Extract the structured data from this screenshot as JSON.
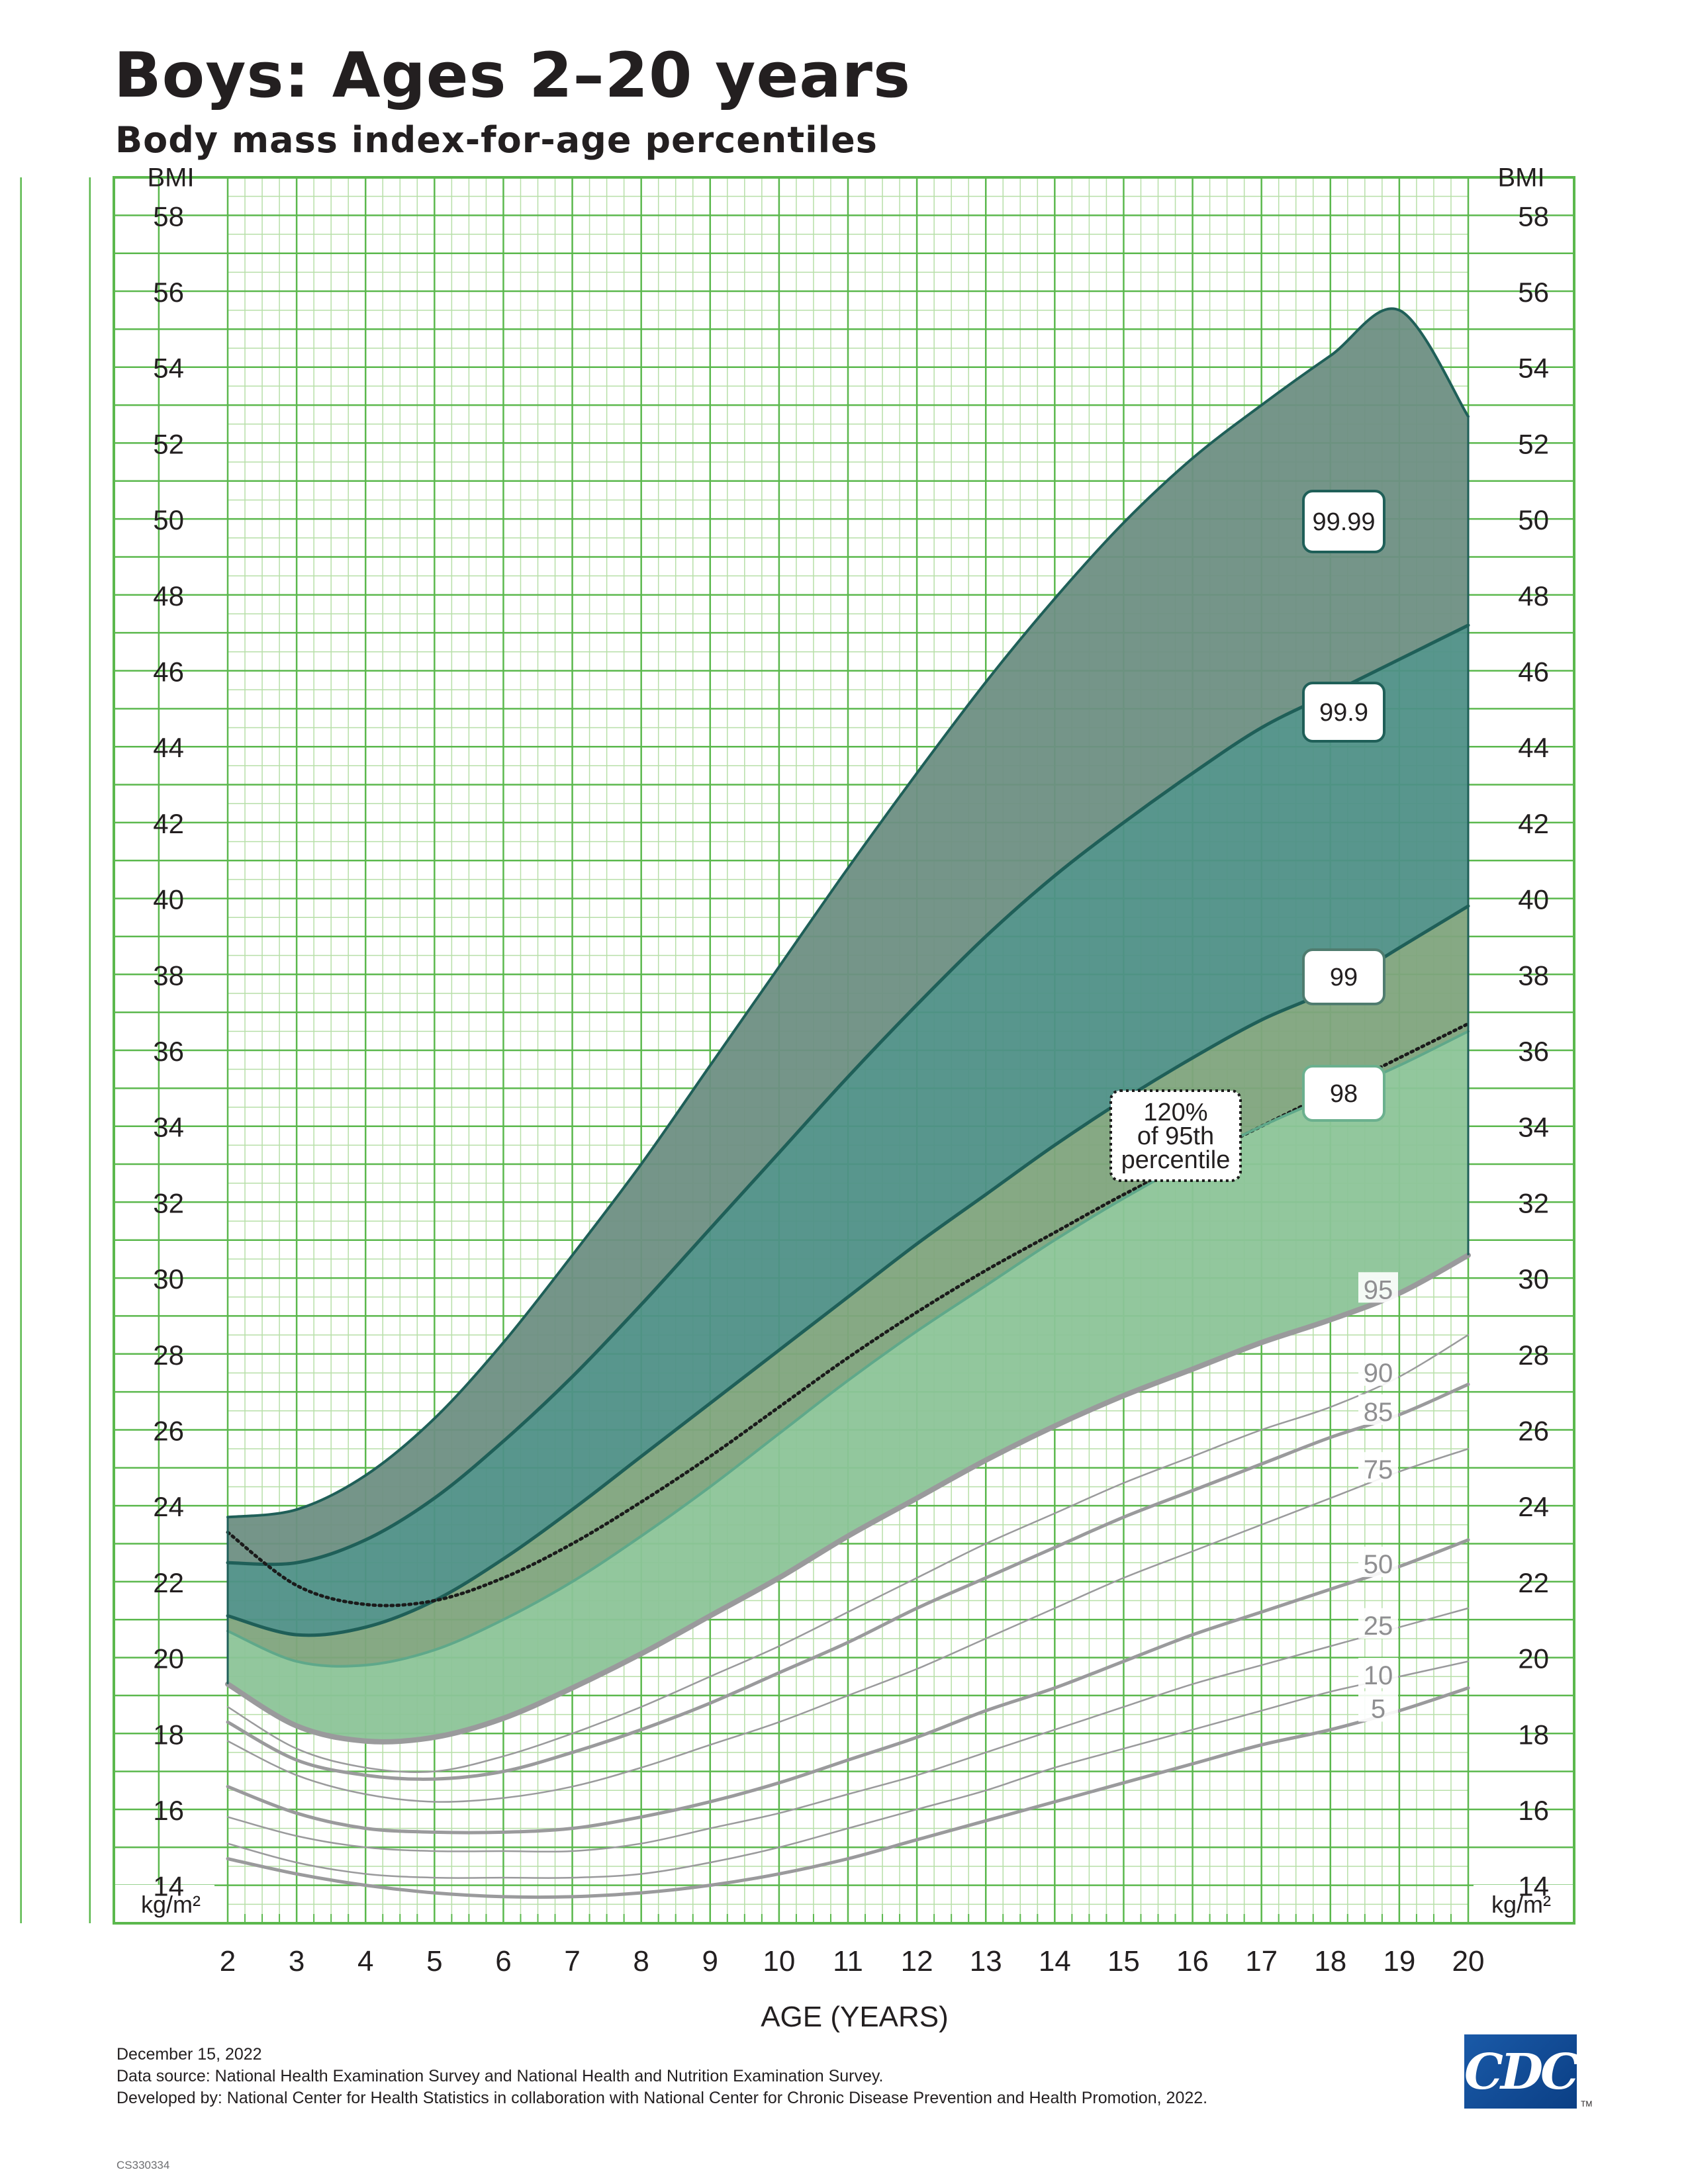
{
  "title": "Boys: Ages 2–20 years",
  "subtitle": "Body mass index-for-age percentiles",
  "footer": {
    "date": "December 15, 2022",
    "source": "Data source: National Health Examination Survey and National Health and Nutrition Examination Survey.",
    "developed": "Developed by: National Center for Health Statistics in collaboration with National Center for Chronic Disease Prevention and Health Promotion, 2022.",
    "code": "CS330334"
  },
  "logo": {
    "text": "CDC",
    "tm": "TM"
  },
  "colors": {
    "grid_major": "#5bb84d",
    "grid_minor": "#b7dfa8",
    "band_9999": "#6e8f83",
    "band_999": "#4f9087",
    "band_99": "#7fa47d",
    "band_98": "#8cc498",
    "band_95": "#9dd3a9",
    "dark_line": "#1f5f58",
    "gray_line": "#9a9a9c"
  },
  "chart_data": {
    "type": "line",
    "xlabel": "AGE (YEARS)",
    "ylabel": "BMI",
    "yunit": "kg/m²",
    "xlim": [
      2,
      20
    ],
    "ylim": [
      13,
      59
    ],
    "x_ticks": [
      2,
      3,
      4,
      5,
      6,
      7,
      8,
      9,
      10,
      11,
      12,
      13,
      14,
      15,
      16,
      17,
      18,
      19,
      20
    ],
    "y_ticks": [
      14,
      16,
      18,
      20,
      22,
      24,
      26,
      28,
      30,
      32,
      34,
      36,
      38,
      40,
      42,
      44,
      46,
      48,
      50,
      52,
      54,
      56,
      58
    ],
    "x": [
      2,
      3,
      4,
      5,
      6,
      7,
      8,
      9,
      10,
      11,
      12,
      13,
      14,
      15,
      16,
      17,
      18,
      19,
      20
    ],
    "series": [
      {
        "name": "99.99",
        "values": [
          23.7,
          23.9,
          24.8,
          26.3,
          28.3,
          30.6,
          33.0,
          35.6,
          38.2,
          40.8,
          43.3,
          45.7,
          47.9,
          49.9,
          51.6,
          53.0,
          54.3,
          55.5,
          52.7
        ]
      },
      {
        "name": "99.9",
        "values": [
          22.5,
          22.5,
          23.1,
          24.2,
          25.7,
          27.4,
          29.3,
          31.3,
          33.3,
          35.3,
          37.2,
          39.0,
          40.6,
          42.0,
          43.3,
          44.5,
          45.4,
          46.3,
          47.2
        ]
      },
      {
        "name": "99",
        "values": [
          21.1,
          20.6,
          20.8,
          21.5,
          22.6,
          23.9,
          25.3,
          26.7,
          28.1,
          29.5,
          30.9,
          32.2,
          33.5,
          34.7,
          35.8,
          36.8,
          37.6,
          38.7,
          39.8
        ]
      },
      {
        "name": "120% of 95th percentile",
        "values": [
          23.3,
          21.9,
          21.4,
          21.5,
          22.1,
          23.0,
          24.1,
          25.3,
          26.6,
          27.9,
          29.1,
          30.2,
          31.2,
          32.2,
          33.1,
          34.0,
          34.9,
          35.8,
          36.7
        ]
      },
      {
        "name": "98",
        "values": [
          20.7,
          19.9,
          19.8,
          20.2,
          21.0,
          22.0,
          23.2,
          24.5,
          25.9,
          27.3,
          28.6,
          29.8,
          31.0,
          32.1,
          33.1,
          34.0,
          34.8,
          35.6,
          36.5
        ]
      },
      {
        "name": "95",
        "values": [
          19.3,
          18.2,
          17.8,
          17.9,
          18.4,
          19.2,
          20.1,
          21.1,
          22.1,
          23.2,
          24.2,
          25.2,
          26.1,
          26.9,
          27.6,
          28.3,
          28.9,
          29.6,
          30.6
        ]
      },
      {
        "name": "90",
        "values": [
          18.7,
          17.6,
          17.1,
          17.0,
          17.4,
          18.0,
          18.7,
          19.5,
          20.3,
          21.2,
          22.1,
          23.0,
          23.8,
          24.6,
          25.3,
          26.0,
          26.6,
          27.4,
          28.5
        ]
      },
      {
        "name": "85",
        "values": [
          18.3,
          17.3,
          16.9,
          16.8,
          17.0,
          17.5,
          18.1,
          18.8,
          19.6,
          20.4,
          21.3,
          22.1,
          22.9,
          23.7,
          24.4,
          25.1,
          25.8,
          26.4,
          27.2
        ]
      },
      {
        "name": "75",
        "values": [
          17.8,
          16.9,
          16.4,
          16.2,
          16.3,
          16.6,
          17.1,
          17.7,
          18.3,
          19.0,
          19.7,
          20.5,
          21.3,
          22.1,
          22.8,
          23.5,
          24.2,
          24.9,
          25.5
        ]
      },
      {
        "name": "50",
        "values": [
          16.6,
          15.9,
          15.5,
          15.4,
          15.4,
          15.5,
          15.8,
          16.2,
          16.7,
          17.3,
          17.9,
          18.6,
          19.2,
          19.9,
          20.6,
          21.2,
          21.8,
          22.4,
          23.1
        ]
      },
      {
        "name": "25",
        "values": [
          15.8,
          15.3,
          15.0,
          14.9,
          14.9,
          14.9,
          15.1,
          15.5,
          15.9,
          16.4,
          16.9,
          17.5,
          18.1,
          18.7,
          19.3,
          19.8,
          20.3,
          20.8,
          21.3
        ]
      },
      {
        "name": "10",
        "values": [
          15.1,
          14.6,
          14.3,
          14.2,
          14.2,
          14.2,
          14.3,
          14.6,
          15.0,
          15.5,
          16.0,
          16.5,
          17.1,
          17.6,
          18.1,
          18.6,
          19.1,
          19.5,
          19.9
        ]
      },
      {
        "name": "5",
        "values": [
          14.7,
          14.3,
          14.0,
          13.8,
          13.7,
          13.7,
          13.8,
          14.0,
          14.3,
          14.7,
          15.2,
          15.7,
          16.2,
          16.7,
          17.2,
          17.7,
          18.1,
          18.6,
          19.2
        ]
      }
    ]
  }
}
